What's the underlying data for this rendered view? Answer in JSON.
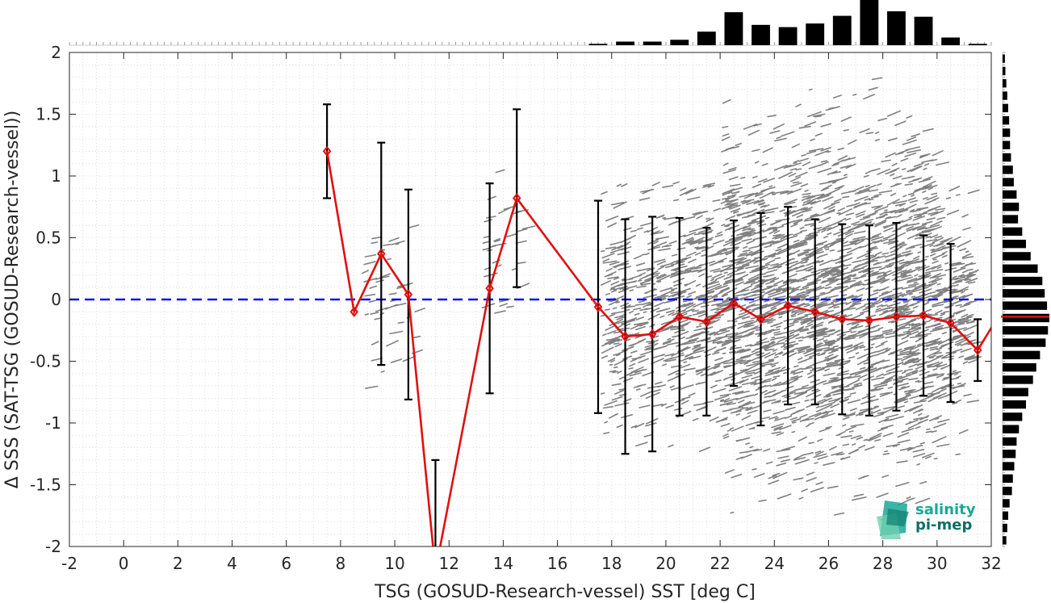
{
  "chart_data": {
    "type": "scatter",
    "xlabel": "TSG (GOSUD-Research-vessel) SST [deg C]",
    "ylabel": "Δ SSS (SAT-TSG (GOSUD-Research-vessel))",
    "xlim": [
      -2,
      32
    ],
    "ylim": [
      -2,
      2
    ],
    "x_ticks": [
      "-2",
      "0",
      "2",
      "4",
      "6",
      "8",
      "10",
      "12",
      "14",
      "16",
      "18",
      "20",
      "22",
      "24",
      "26",
      "28",
      "30",
      "32"
    ],
    "y_ticks": [
      "-2",
      "-1.5",
      "-1",
      "-0.5",
      "0",
      "0.5",
      "1",
      "1.5",
      "2"
    ],
    "grid": true,
    "reference_line": {
      "y": 0,
      "style": "dashed",
      "color": "#1414e6"
    },
    "colors": {
      "scatter": "#808080",
      "mean": "#e01010",
      "errorbar": "#000000",
      "histogram": "#000000"
    },
    "binned_mean": {
      "x": [
        7.5,
        8.5,
        9.5,
        10.5,
        11.5,
        13.5,
        14.5,
        17.5,
        18.5,
        19.5,
        20.5,
        21.5,
        22.5,
        23.5,
        24.5,
        25.5,
        26.5,
        27.5,
        28.5,
        29.5,
        30.5,
        31.5,
        32.5
      ],
      "y": [
        1.2,
        -0.1,
        0.37,
        0.04,
        -2.2,
        0.09,
        0.82,
        -0.06,
        -0.3,
        -0.28,
        -0.14,
        -0.18,
        -0.03,
        -0.16,
        -0.05,
        -0.1,
        -0.16,
        -0.17,
        -0.14,
        -0.13,
        -0.19,
        -0.41,
        -0.05
      ],
      "std": [
        0.38,
        null,
        0.9,
        0.85,
        0.9,
        0.85,
        0.72,
        0.86,
        0.95,
        0.95,
        0.8,
        0.76,
        0.67,
        0.86,
        0.8,
        0.75,
        0.77,
        0.77,
        0.76,
        0.65,
        0.64,
        0.25,
        null
      ]
    },
    "scatter_regions": [
      {
        "x": [
          17.6,
          22.0
        ],
        "y": [
          -1.5,
          1.3
        ],
        "density": 0.5
      },
      {
        "x": [
          22.0,
          30.0
        ],
        "y": [
          -2.0,
          1.9
        ],
        "density": 1.0
      },
      {
        "x": [
          30.0,
          31.2
        ],
        "y": [
          -1.5,
          1.2
        ],
        "density": 0.55
      },
      {
        "x": [
          8.8,
          10.9
        ],
        "y": [
          -0.8,
          0.8
        ],
        "density": 0.08
      },
      {
        "x": [
          13.2,
          14.8
        ],
        "y": [
          -0.5,
          1.2
        ],
        "density": 0.08
      }
    ],
    "top_histogram": {
      "centers": [
        17.5,
        18.5,
        19.5,
        20.5,
        21.5,
        22.5,
        23.5,
        24.5,
        25.5,
        26.5,
        27.5,
        28.5,
        29.5,
        30.5,
        31.5
      ],
      "values": [
        0.03,
        0.08,
        0.08,
        0.12,
        0.3,
        0.73,
        0.45,
        0.4,
        0.48,
        0.65,
        1.0,
        0.75,
        0.63,
        0.17,
        0.03
      ]
    },
    "right_histogram": {
      "centers": [
        1.95,
        1.85,
        1.75,
        1.65,
        1.55,
        1.45,
        1.35,
        1.25,
        1.15,
        1.05,
        0.95,
        0.85,
        0.75,
        0.65,
        0.55,
        0.45,
        0.35,
        0.25,
        0.15,
        0.05,
        -0.05,
        -0.15,
        -0.25,
        -0.35,
        -0.45,
        -0.55,
        -0.65,
        -0.75,
        -0.85,
        -0.95,
        -1.05,
        -1.15,
        -1.25,
        -1.35,
        -1.45,
        -1.55,
        -1.65,
        -1.75,
        -1.85,
        -1.95
      ],
      "values": [
        0.05,
        0.06,
        0.08,
        0.1,
        0.12,
        0.14,
        0.16,
        0.16,
        0.18,
        0.22,
        0.24,
        0.3,
        0.35,
        0.33,
        0.42,
        0.5,
        0.6,
        0.75,
        0.85,
        0.9,
        0.95,
        1.0,
        0.97,
        0.92,
        0.8,
        0.72,
        0.65,
        0.55,
        0.5,
        0.42,
        0.35,
        0.3,
        0.28,
        0.25,
        0.22,
        0.2,
        0.15,
        0.12,
        0.1,
        0.08
      ]
    },
    "right_histogram_mean": -0.14
  },
  "logo": {
    "line1": "salinity",
    "line2": "pi-mep"
  }
}
